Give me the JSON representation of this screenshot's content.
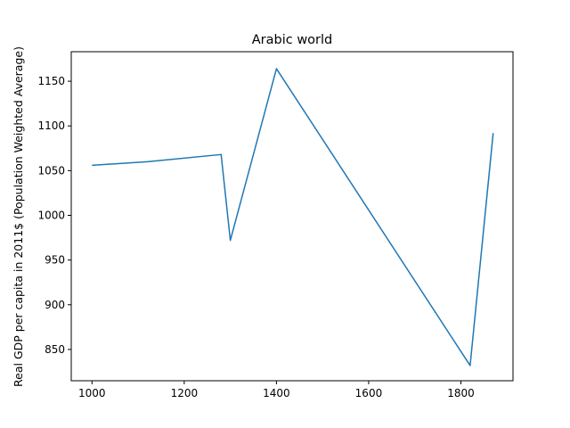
{
  "chart_data": {
    "type": "line",
    "title": "Arabic world",
    "xlabel": "",
    "ylabel": "Real GDP per capita in 2011$ (Population Weighted Average)",
    "xlim": [
      955,
      1913
    ],
    "ylim": [
      815,
      1183
    ],
    "x_ticks": [
      1000,
      1200,
      1400,
      1600,
      1800
    ],
    "y_ticks": [
      850,
      900,
      950,
      1000,
      1050,
      1100,
      1150
    ],
    "grid": false,
    "series": [
      {
        "color": "#1f77b4",
        "x": [
          1000,
          1120,
          1280,
          1300,
          1400,
          1820,
          1870
        ],
        "y": [
          1056,
          1060,
          1068,
          972,
          1164,
          832,
          1092
        ]
      }
    ]
  }
}
